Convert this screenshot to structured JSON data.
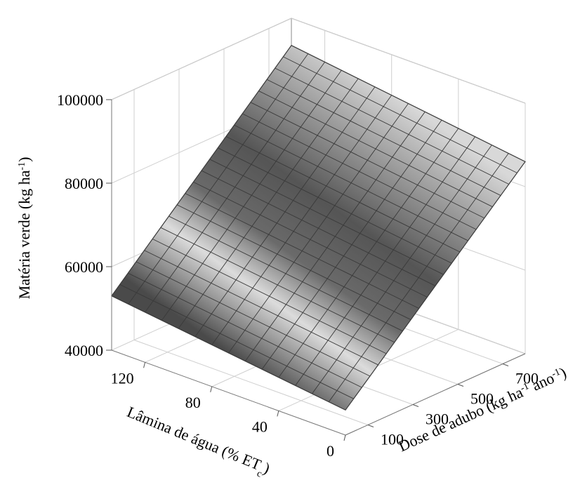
{
  "chart_data": {
    "type": "surface",
    "title": "",
    "zlabel": {
      "main": "Matéria verde (kg ha",
      "sup": "-1",
      "tail": ")"
    },
    "xlabel": {
      "main": "Lâmina de água (% ET",
      "sub": "c",
      "tail": ")"
    },
    "ylabel": {
      "main": "Dose de adubo (kg ha",
      "sup1": "-1",
      "mid": " ano",
      "sup2": "-1",
      "tail": ")"
    },
    "x_ticks": [
      "0",
      "40",
      "80",
      "120"
    ],
    "x_tick_values": [
      0,
      40,
      80,
      120
    ],
    "y_ticks": [
      "100",
      "300",
      "500",
      "700"
    ],
    "y_tick_values": [
      100,
      300,
      500,
      700
    ],
    "z_ticks": [
      "40000",
      "60000",
      "80000",
      "100000"
    ],
    "z_tick_values": [
      40000,
      60000,
      80000,
      100000
    ],
    "x_range": [
      0,
      140
    ],
    "y_range": [
      0,
      800
    ],
    "z_range": [
      40000,
      100000
    ],
    "surface_corners": [
      {
        "x": 140,
        "y": 0,
        "z": 53000
      },
      {
        "x": 0,
        "y": 0,
        "z": 46000
      },
      {
        "x": 0,
        "y": 800,
        "z": 86000
      },
      {
        "x": 140,
        "y": 800,
        "z": 93500
      }
    ],
    "grid": true,
    "surface_color": "#808080",
    "mesh_color": "#3a3a3a"
  }
}
